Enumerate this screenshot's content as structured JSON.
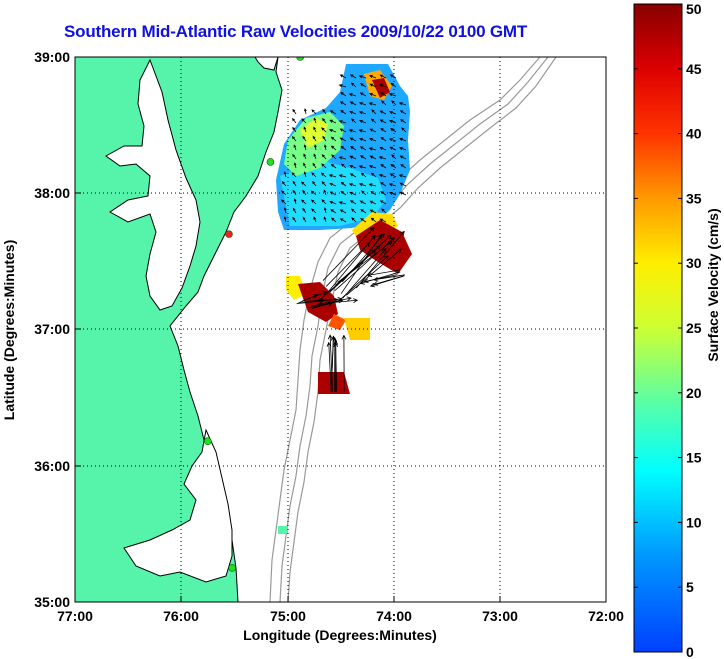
{
  "title": "Southern Mid-Atlantic Raw Velocities 2009/10/22 0100 GMT",
  "xlabel": "Longitude (Degrees:Minutes)",
  "ylabel": "Latitude (Degrees:Minutes)",
  "x_ticks": [
    "77:00",
    "76:00",
    "75:00",
    "74:00",
    "73:00",
    "72:00"
  ],
  "y_ticks": [
    "39:00",
    "38:00",
    "37:00",
    "36:00",
    "35:00"
  ],
  "colorbar": {
    "label": "Surface Velocity (cm/s)",
    "ticks": [
      "0",
      "5",
      "10",
      "15",
      "20",
      "25",
      "30",
      "35",
      "40",
      "45",
      "50"
    ],
    "range": [
      0,
      50
    ],
    "colormap": "jet"
  },
  "colors": {
    "land": "#55f4aa",
    "coast": "#000000",
    "bathymetry": "#999999",
    "station": "#22dd22",
    "station_alert": "#ee2222",
    "title": "#1010e0"
  },
  "map_extent": {
    "lon": [
      -77,
      -72
    ],
    "lat": [
      35,
      39
    ]
  },
  "stations": [
    {
      "lon": -74.88,
      "lat": 39.0,
      "status": "active"
    },
    {
      "lon": -75.16,
      "lat": 38.23,
      "status": "active"
    },
    {
      "lon": -75.55,
      "lat": 37.7,
      "status": "alert"
    },
    {
      "lon": -75.75,
      "lat": 36.18,
      "status": "active"
    },
    {
      "lon": -75.52,
      "lat": 35.25,
      "status": "active"
    }
  ]
}
